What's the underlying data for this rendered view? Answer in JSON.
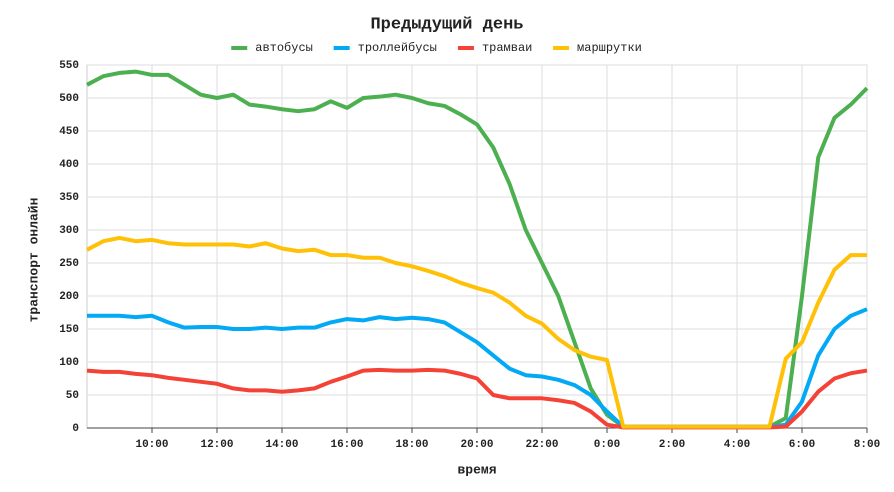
{
  "chart_data": {
    "type": "line",
    "title": "Предыдущий день",
    "x_label": "время",
    "y_label": "транспорт онлайн",
    "legend": "top",
    "grid": true,
    "x": [
      8,
      8.5,
      9,
      9.5,
      10,
      10.5,
      11,
      11.5,
      12,
      12.5,
      13,
      13.5,
      14,
      14.5,
      15,
      15.5,
      16,
      16.5,
      17,
      17.5,
      18,
      18.5,
      19,
      19.5,
      20,
      20.5,
      21,
      21.5,
      22,
      22.5,
      23,
      23.5,
      24,
      24.5,
      25,
      25.5,
      26,
      26.5,
      27,
      27.5,
      28,
      28.5,
      29,
      29.5,
      30,
      30.5,
      31,
      31.5,
      32
    ],
    "series": [
      {
        "name": "автобусы",
        "color": "#4caf50",
        "values": [
          520,
          533,
          538,
          540,
          535,
          535,
          520,
          505,
          500,
          505,
          490,
          487,
          483,
          480,
          483,
          495,
          485,
          500,
          502,
          505,
          500,
          492,
          488,
          475,
          460,
          425,
          370,
          300,
          250,
          200,
          130,
          60,
          20,
          2,
          2,
          2,
          2,
          2,
          2,
          2,
          2,
          2,
          2,
          15,
          200,
          410,
          470,
          490,
          515
        ]
      },
      {
        "name": "троллейбусы",
        "color": "#03a9f4",
        "values": [
          170,
          170,
          170,
          168,
          170,
          160,
          152,
          153,
          153,
          150,
          150,
          152,
          150,
          152,
          152,
          160,
          165,
          163,
          168,
          165,
          167,
          165,
          160,
          145,
          130,
          110,
          90,
          80,
          78,
          73,
          65,
          50,
          25,
          2,
          2,
          2,
          2,
          2,
          2,
          2,
          2,
          2,
          2,
          5,
          40,
          110,
          150,
          170,
          180
        ]
      },
      {
        "name": "трамваи",
        "color": "#f44336",
        "values": [
          87,
          85,
          85,
          82,
          80,
          76,
          73,
          70,
          67,
          60,
          57,
          57,
          55,
          57,
          60,
          70,
          78,
          87,
          88,
          87,
          87,
          88,
          87,
          82,
          75,
          50,
          45,
          45,
          45,
          42,
          38,
          25,
          5,
          1,
          1,
          1,
          1,
          1,
          1,
          1,
          1,
          1,
          1,
          2,
          25,
          55,
          75,
          83,
          87
        ]
      },
      {
        "name": "маршрутки",
        "color": "#ffc107",
        "values": [
          270,
          283,
          288,
          283,
          285,
          280,
          278,
          278,
          278,
          278,
          275,
          280,
          272,
          268,
          270,
          262,
          262,
          258,
          258,
          250,
          245,
          238,
          230,
          220,
          212,
          205,
          190,
          170,
          158,
          135,
          118,
          108,
          103,
          2,
          2,
          2,
          2,
          2,
          2,
          2,
          2,
          2,
          2,
          105,
          130,
          190,
          240,
          262,
          262
        ]
      }
    ],
    "xlim": [
      8,
      32
    ],
    "xticks": [
      {
        "value": 10,
        "label": "10:00"
      },
      {
        "value": 12,
        "label": "12:00"
      },
      {
        "value": 14,
        "label": "14:00"
      },
      {
        "value": 16,
        "label": "16:00"
      },
      {
        "value": 18,
        "label": "18:00"
      },
      {
        "value": 20,
        "label": "20:00"
      },
      {
        "value": 22,
        "label": "22:00"
      },
      {
        "value": 24,
        "label": "0:00"
      },
      {
        "value": 26,
        "label": "2:00"
      },
      {
        "value": 28,
        "label": "4:00"
      },
      {
        "value": 30,
        "label": "6:00"
      },
      {
        "value": 32,
        "label": "8:00"
      }
    ],
    "ylim": [
      0,
      550
    ],
    "yticks": [
      0,
      50,
      100,
      150,
      200,
      250,
      300,
      350,
      400,
      450,
      500,
      550
    ]
  }
}
